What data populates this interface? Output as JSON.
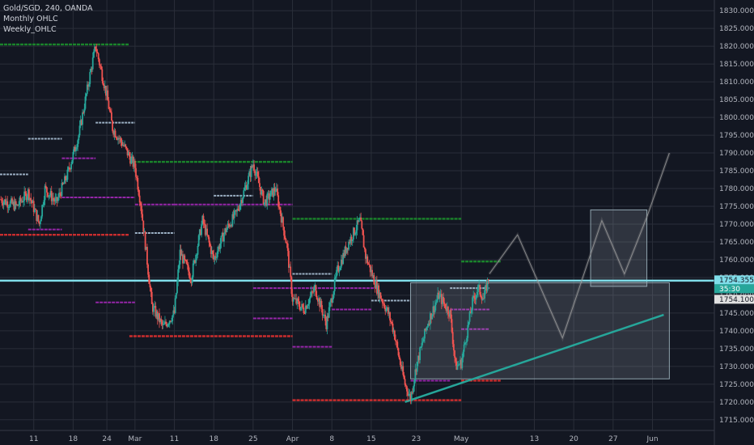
{
  "legend": {
    "symbol_line": "Gold/SGD, 240, OANDA",
    "indicator_1": "Monthly OHLC",
    "indicator_2": "Weekly_OHLC"
  },
  "price_tags": {
    "current_price": "1754.355",
    "countdown": "35:30",
    "line_price": "1754.100",
    "current_color": "#26a69a",
    "line_color": "#80deea"
  },
  "colors": {
    "background": "#131722",
    "grid": "#2a2e39",
    "candle_up": "#26a69a",
    "candle_down": "#ef5350",
    "monthly_high": "#1b8a2c",
    "monthly_low": "#d32f2f",
    "weekly_mid": "#9c27b0",
    "weekly_high": "#a3b8cc",
    "horizontal_line": "#80deea",
    "trendline": "#26a69a",
    "box_fill": "#b0bec5"
  },
  "chart_data": {
    "type": "line",
    "instrument": "Gold/SGD",
    "timeframe": "240",
    "source": "OANDA",
    "y_axis": {
      "ticks": [
        1715,
        1720,
        1725,
        1730,
        1735,
        1740,
        1745,
        1750,
        1755,
        1760,
        1765,
        1770,
        1775,
        1780,
        1785,
        1790,
        1795,
        1800,
        1805,
        1810,
        1815,
        1820,
        1825,
        1830
      ],
      "tick_labels": [
        "1715.000",
        "1720.000",
        "1725.000",
        "1730.000",
        "1735.000",
        "1740.000",
        "1745.000",
        "1750.000",
        "1755.000",
        "1760.000",
        "1765.000",
        "1770.000",
        "1775.000",
        "1780.000",
        "1785.000",
        "1790.000",
        "1795.000",
        "1800.000",
        "1805.000",
        "1810.000",
        "1815.000",
        "1820.000",
        "1825.000",
        "1830.000"
      ],
      "range": [
        1712,
        1833
      ]
    },
    "x_axis": {
      "tick_labels": [
        "11",
        "18",
        "24",
        "Mar",
        "11",
        "18",
        "25",
        "Apr",
        "8",
        "15",
        "23",
        "May",
        "13",
        "20",
        "27",
        "Jun"
      ],
      "tick_positions": [
        1,
        8,
        14,
        19,
        26,
        33,
        40,
        47,
        54,
        61,
        69,
        77,
        90,
        97,
        104,
        111
      ],
      "range": [
        -5,
        122
      ]
    },
    "series": [
      {
        "kind": "price_path",
        "points": [
          [
            -5,
            1777
          ],
          [
            -2,
            1775
          ],
          [
            0,
            1779
          ],
          [
            2,
            1770
          ],
          [
            3,
            1780
          ],
          [
            5,
            1776
          ],
          [
            7,
            1784
          ],
          [
            9,
            1795
          ],
          [
            11,
            1812
          ],
          [
            12,
            1820
          ],
          [
            14,
            1806
          ],
          [
            15,
            1797
          ],
          [
            17,
            1792
          ],
          [
            19,
            1786
          ],
          [
            20,
            1776
          ],
          [
            21,
            1762
          ],
          [
            22,
            1747
          ],
          [
            24,
            1741
          ],
          [
            26,
            1745
          ],
          [
            27,
            1762
          ],
          [
            29,
            1755
          ],
          [
            31,
            1771
          ],
          [
            33,
            1760
          ],
          [
            35,
            1768
          ],
          [
            37,
            1773
          ],
          [
            39,
            1782
          ],
          [
            40,
            1787
          ],
          [
            42,
            1776
          ],
          [
            44,
            1780
          ],
          [
            46,
            1764
          ],
          [
            47,
            1749
          ],
          [
            49,
            1746
          ],
          [
            51,
            1752
          ],
          [
            53,
            1742
          ],
          [
            55,
            1757
          ],
          [
            57,
            1765
          ],
          [
            59,
            1771
          ],
          [
            60,
            1761
          ],
          [
            62,
            1752
          ],
          [
            64,
            1745
          ],
          [
            65,
            1740
          ],
          [
            66,
            1732
          ],
          [
            67,
            1725
          ],
          [
            68,
            1721
          ],
          [
            69,
            1730
          ],
          [
            71,
            1742
          ],
          [
            73,
            1750
          ],
          [
            75,
            1745
          ],
          [
            76,
            1730
          ],
          [
            77,
            1731
          ],
          [
            79,
            1748
          ],
          [
            80,
            1752
          ],
          [
            81,
            1749
          ],
          [
            82,
            1756
          ]
        ]
      },
      {
        "kind": "projection",
        "points": [
          [
            82,
            1756
          ],
          [
            87,
            1767
          ],
          [
            95,
            1738
          ],
          [
            102,
            1771
          ],
          [
            106,
            1756
          ],
          [
            110,
            1772
          ],
          [
            114,
            1790
          ]
        ]
      }
    ],
    "levels": [
      {
        "type": "monthly_high",
        "price": 1820.5,
        "x0": -5,
        "x1": 18
      },
      {
        "type": "monthly_low",
        "price": 1767,
        "x0": -5,
        "x1": 18
      },
      {
        "type": "monthly_high",
        "price": 1787.5,
        "x0": 18,
        "x1": 47
      },
      {
        "type": "monthly_low",
        "price": 1738.5,
        "x0": 18,
        "x1": 47
      },
      {
        "type": "monthly_high",
        "price": 1771.5,
        "x0": 47,
        "x1": 77
      },
      {
        "type": "monthly_low",
        "price": 1720.5,
        "x0": 47,
        "x1": 77
      },
      {
        "type": "weekly_high",
        "price": 1784,
        "x0": -5,
        "x1": 0
      },
      {
        "type": "weekly_mid",
        "price": 1768.5,
        "x0": 0,
        "x1": 6
      },
      {
        "type": "weekly_high",
        "price": 1794,
        "x0": 0,
        "x1": 6
      },
      {
        "type": "weekly_mid",
        "price": 1777.5,
        "x0": 6,
        "x1": 19
      },
      {
        "type": "weekly_high",
        "price": 1798.5,
        "x0": 12,
        "x1": 19
      },
      {
        "type": "weekly_mid",
        "price": 1788.5,
        "x0": 6,
        "x1": 12
      },
      {
        "type": "weekly_mid",
        "price": 1775.5,
        "x0": 19,
        "x1": 26
      },
      {
        "type": "weekly_mid",
        "price": 1748,
        "x0": 12,
        "x1": 19
      },
      {
        "type": "weekly_high",
        "price": 1767.5,
        "x0": 19,
        "x1": 26
      },
      {
        "type": "weekly_mid",
        "price": 1775.5,
        "x0": 26,
        "x1": 47
      },
      {
        "type": "weekly_high",
        "price": 1778,
        "x0": 33,
        "x1": 40
      },
      {
        "type": "weekly_mid",
        "price": 1743.5,
        "x0": 40,
        "x1": 47
      },
      {
        "type": "weekly_mid",
        "price": 1735.5,
        "x0": 47,
        "x1": 54
      },
      {
        "type": "weekly_high",
        "price": 1756,
        "x0": 47,
        "x1": 54
      },
      {
        "type": "weekly_mid",
        "price": 1752,
        "x0": 40,
        "x1": 62
      },
      {
        "type": "weekly_mid",
        "price": 1746,
        "x0": 54,
        "x1": 61
      },
      {
        "type": "weekly_high",
        "price": 1748.5,
        "x0": 61,
        "x1": 68
      },
      {
        "type": "weekly_mid",
        "price": 1726,
        "x0": 68,
        "x1": 75
      },
      {
        "type": "weekly_high",
        "price": 1752,
        "x0": 75,
        "x1": 82
      },
      {
        "type": "weekly_mid",
        "price": 1746,
        "x0": 75,
        "x1": 82
      },
      {
        "type": "weekly_mid",
        "price": 1740.5,
        "x0": 77,
        "x1": 82
      },
      {
        "type": "monthly_high",
        "price": 1759.5,
        "x0": 77,
        "x1": 84
      },
      {
        "type": "monthly_low",
        "price": 1726,
        "x0": 77,
        "x1": 84
      }
    ],
    "drawings": {
      "horizontal_line": 1754.1,
      "trendline": [
        [
          67,
          1720
        ],
        [
          113,
          1744.5
        ]
      ],
      "rectangles": [
        {
          "x0": 68,
          "x1": 114,
          "y0": 1726.5,
          "y1": 1753.5
        },
        {
          "x0": 100,
          "x1": 110,
          "y0": 1752.5,
          "y1": 1774
        }
      ]
    }
  }
}
